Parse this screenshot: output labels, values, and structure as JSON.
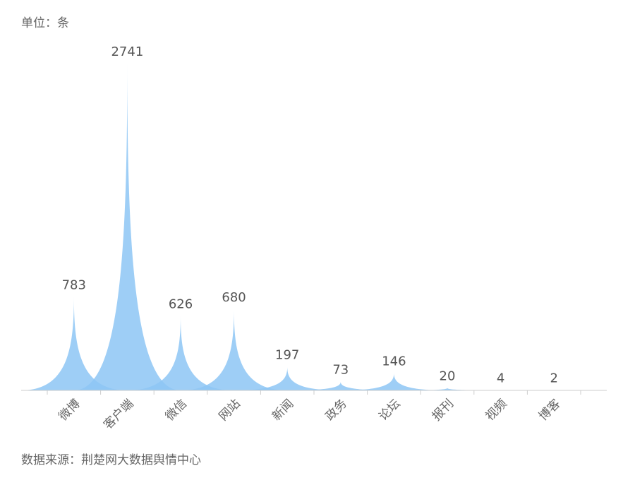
{
  "chart_data": {
    "type": "spike",
    "unit_label": "单位：条",
    "source": "数据来源：荆楚网大数据舆情中心",
    "categories": [
      "微博",
      "客户端",
      "微信",
      "网站",
      "新闻",
      "政务",
      "论坛",
      "报刊",
      "视频",
      "博客"
    ],
    "values": [
      783,
      2741,
      626,
      680,
      197,
      73,
      146,
      20,
      4,
      2
    ],
    "color": "#8dc5f5"
  }
}
